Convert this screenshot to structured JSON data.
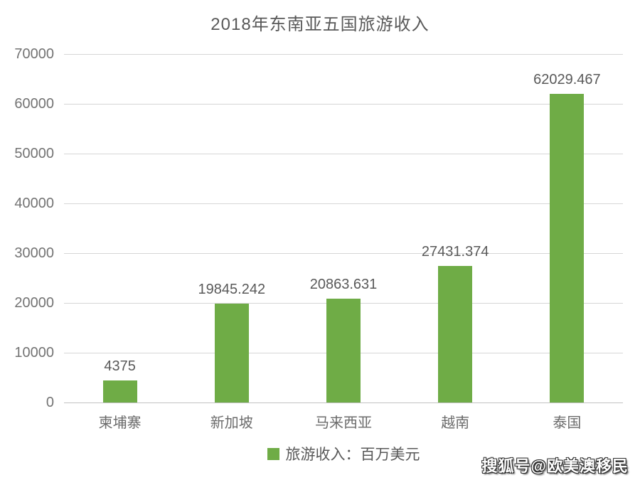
{
  "chart_data": {
    "type": "bar",
    "title": "2018年东南亚五国旅游收入",
    "categories": [
      "柬埔寨",
      "新加坡",
      "马来西亚",
      "越南",
      "泰国"
    ],
    "values": [
      4375,
      19845.242,
      20863.631,
      27431.374,
      62029.467
    ],
    "value_labels": [
      "4375",
      "19845.242",
      "20863.631",
      "27431.374",
      "62029.467"
    ],
    "legend": "旅游收入：百万美元",
    "legend_position": "bottom",
    "xlabel": "",
    "ylabel": "",
    "ylim": [
      0,
      70000
    ],
    "yticks": [
      0,
      10000,
      20000,
      30000,
      40000,
      50000,
      60000,
      70000
    ],
    "grid": true,
    "bar_color": "#6fac46",
    "gridline_color": "#d6d6d6",
    "axis_text_color": "#737373",
    "label_text_color": "#595959"
  },
  "watermark": {
    "text": "搜狐号@欧美澳移民"
  }
}
